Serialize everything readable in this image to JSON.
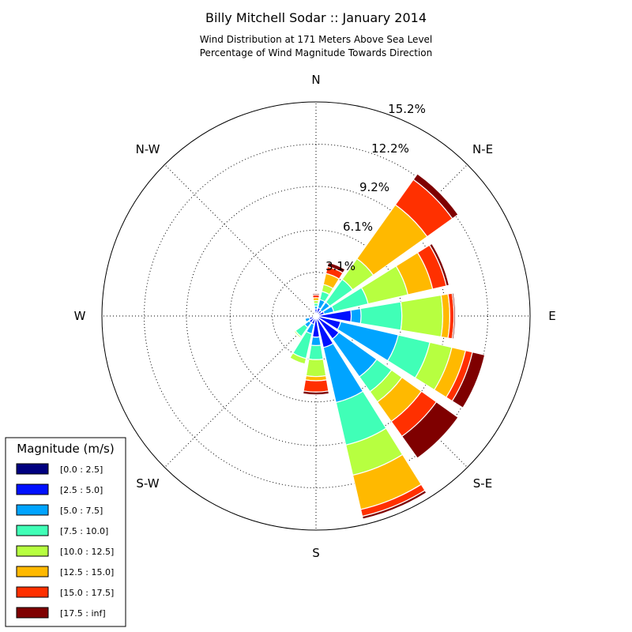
{
  "chart_data": {
    "type": "windrose",
    "title": "Billy Mitchell Sodar :: January 2014",
    "subtitle": [
      "Wind Distribution at 171 Meters Above Sea Level",
      "Percentage of Wind Magnitude Towards Direction"
    ],
    "direction_labels": [
      "N",
      "N-E",
      "E",
      "S-E",
      "S",
      "S-W",
      "W",
      "N-W"
    ],
    "radial_ticks": [
      "3.1%",
      "6.1%",
      "9.2%",
      "12.2%",
      "15.2%"
    ],
    "radial_max": 15.2,
    "legend": {
      "title": "Magnitude (m/s)",
      "bins": [
        {
          "label": "[0.0 : 2.5]",
          "color": "#00007f"
        },
        {
          "label": "[2.5 : 5.0]",
          "color": "#0010ff"
        },
        {
          "label": "[5.0 : 7.5]",
          "color": "#00a4ff"
        },
        {
          "label": "[7.5 : 10.0]",
          "color": "#40ffb7"
        },
        {
          "label": "[10.0 : 12.5]",
          "color": "#b7ff40"
        },
        {
          "label": "[12.5 : 15.0]",
          "color": "#ffb900"
        },
        {
          "label": "[15.0 : 17.5]",
          "color": "#ff3000"
        },
        {
          "label": "[17.5 : inf]",
          "color": "#7f0000"
        }
      ]
    },
    "series_cumulative": [
      {
        "direction_deg": 0,
        "cumulative_pct": [
          0.05,
          0.5,
          0.7,
          0.9,
          1.1,
          1.3,
          1.5,
          1.6
        ]
      },
      {
        "direction_deg": 22.5,
        "cumulative_pct": [
          0.05,
          0.6,
          1.2,
          1.8,
          2.3,
          3.1,
          3.6,
          3.9
        ]
      },
      {
        "direction_deg": 45,
        "cumulative_pct": [
          0.05,
          0.5,
          1.2,
          3.2,
          5.0,
          9.7,
          11.9,
          12.4
        ]
      },
      {
        "direction_deg": 67.5,
        "cumulative_pct": [
          0.05,
          0.6,
          1.3,
          3.8,
          6.7,
          8.5,
          9.5,
          9.7
        ]
      },
      {
        "direction_deg": 90,
        "cumulative_pct": [
          0.05,
          2.5,
          3.2,
          6.1,
          9.0,
          9.5,
          9.8,
          9.9
        ]
      },
      {
        "direction_deg": 112.5,
        "cumulative_pct": [
          0.05,
          1.8,
          6.0,
          8.3,
          9.9,
          10.9,
          11.4,
          12.3
        ]
      },
      {
        "direction_deg": 135,
        "cumulative_pct": [
          0.05,
          2.0,
          5.3,
          6.6,
          7.5,
          9.2,
          10.5,
          12.4
        ]
      },
      {
        "direction_deg": 157.5,
        "cumulative_pct": [
          0.05,
          2.3,
          6.3,
          9.4,
          11.6,
          14.1,
          14.6,
          14.8
        ]
      },
      {
        "direction_deg": 180,
        "cumulative_pct": [
          0.05,
          1.5,
          2.1,
          3.1,
          4.3,
          4.6,
          5.4,
          5.6
        ]
      },
      {
        "direction_deg": 202.5,
        "cumulative_pct": [
          0.05,
          0.6,
          1.3,
          3.1,
          3.5,
          3.5,
          3.5,
          3.5
        ]
      },
      {
        "direction_deg": 225,
        "cumulative_pct": [
          0.05,
          0.6,
          1.0,
          1.8,
          1.9,
          1.9,
          1.9,
          1.9
        ]
      },
      {
        "direction_deg": 247.5,
        "cumulative_pct": [
          0.05,
          0.5,
          0.8,
          0.8,
          0.8,
          0.8,
          0.8,
          0.8
        ]
      },
      {
        "direction_deg": 270,
        "cumulative_pct": [
          0.05,
          0.2,
          0.2,
          0.2,
          0.2,
          0.2,
          0.2,
          0.2
        ]
      },
      {
        "direction_deg": 292.5,
        "cumulative_pct": [
          0.05,
          0.2,
          0.2,
          0.2,
          0.2,
          0.2,
          0.2,
          0.2
        ]
      },
      {
        "direction_deg": 315,
        "cumulative_pct": [
          0.05,
          0.2,
          0.2,
          0.2,
          0.2,
          0.2,
          0.2,
          0.2
        ]
      },
      {
        "direction_deg": 337.5,
        "cumulative_pct": [
          0.05,
          0.3,
          0.3,
          0.3,
          0.3,
          0.3,
          0.3,
          0.3
        ]
      }
    ],
    "grid": true
  }
}
